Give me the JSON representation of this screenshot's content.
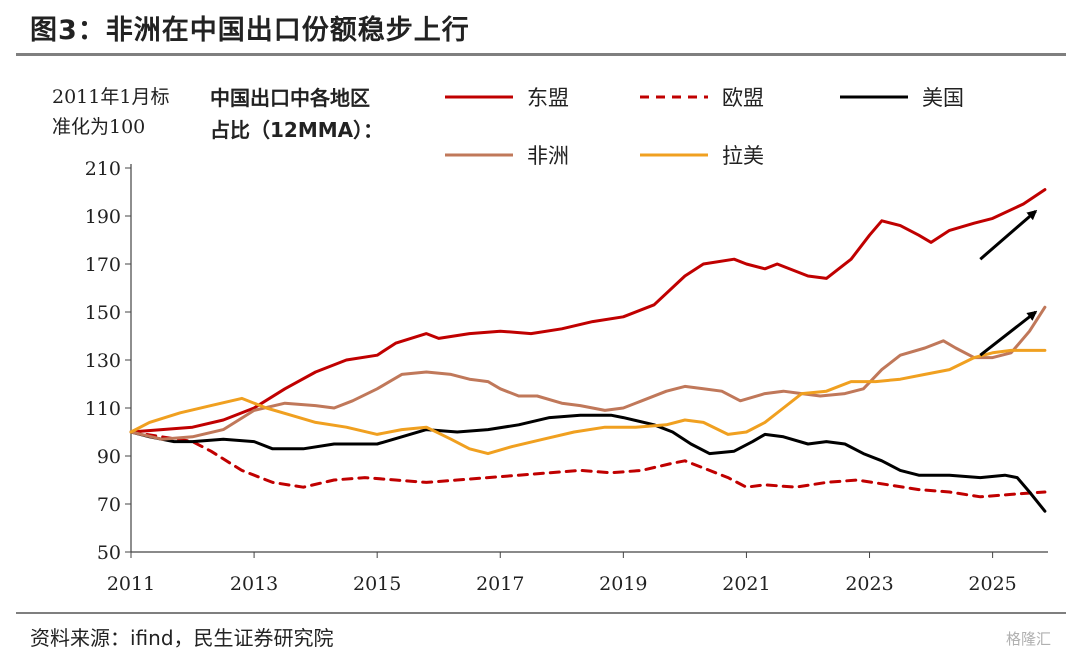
{
  "page": {
    "title": "图3：非洲在中国出口份额稳步上行",
    "source": "资料来源：ifind，民生证券研究院",
    "watermark": "格隆汇"
  },
  "chart_data": {
    "type": "line",
    "title": "图3：非洲在中国出口份额稳步上行",
    "subtitle_line1": "中国出口中各地区",
    "subtitle_line2": "占比（12MMA）：",
    "unit_line1": "2011年1月标",
    "unit_line2": "准化为100",
    "xlim": [
      2011,
      2025.9
    ],
    "ylim": [
      50,
      210
    ],
    "yticks": [
      50,
      70,
      90,
      110,
      130,
      150,
      170,
      190,
      210
    ],
    "xticks": [
      2011,
      2013,
      2015,
      2017,
      2019,
      2021,
      2023,
      2025
    ],
    "grid": false,
    "legend_position": "top",
    "series": [
      {
        "name": "东盟",
        "color": "#c00000",
        "dash": "solid",
        "points": [
          [
            2011.0,
            100
          ],
          [
            2011.5,
            101
          ],
          [
            2012.0,
            102
          ],
          [
            2012.5,
            105
          ],
          [
            2013.0,
            110
          ],
          [
            2013.5,
            118
          ],
          [
            2014.0,
            125
          ],
          [
            2014.5,
            130
          ],
          [
            2015.0,
            132
          ],
          [
            2015.3,
            137
          ],
          [
            2015.8,
            141
          ],
          [
            2016.0,
            139
          ],
          [
            2016.5,
            141
          ],
          [
            2017.0,
            142
          ],
          [
            2017.5,
            141
          ],
          [
            2018.0,
            143
          ],
          [
            2018.5,
            146
          ],
          [
            2019.0,
            148
          ],
          [
            2019.5,
            153
          ],
          [
            2020.0,
            165
          ],
          [
            2020.3,
            170
          ],
          [
            2020.8,
            172
          ],
          [
            2021.0,
            170
          ],
          [
            2021.3,
            168
          ],
          [
            2021.5,
            170
          ],
          [
            2022.0,
            165
          ],
          [
            2022.3,
            164
          ],
          [
            2022.7,
            172
          ],
          [
            2023.0,
            182
          ],
          [
            2023.2,
            188
          ],
          [
            2023.5,
            186
          ],
          [
            2023.8,
            182
          ],
          [
            2024.0,
            179
          ],
          [
            2024.3,
            184
          ],
          [
            2024.7,
            187
          ],
          [
            2025.0,
            189
          ],
          [
            2025.5,
            195
          ],
          [
            2025.85,
            201
          ]
        ]
      },
      {
        "name": "欧盟",
        "color": "#c00000",
        "dash": "dashed",
        "points": [
          [
            2011.0,
            100
          ],
          [
            2011.5,
            98
          ],
          [
            2012.0,
            96
          ],
          [
            2012.3,
            92
          ],
          [
            2012.8,
            84
          ],
          [
            2013.3,
            79
          ],
          [
            2013.8,
            77
          ],
          [
            2014.3,
            80
          ],
          [
            2014.8,
            81
          ],
          [
            2015.3,
            80
          ],
          [
            2015.8,
            79
          ],
          [
            2016.3,
            80
          ],
          [
            2016.8,
            81
          ],
          [
            2017.3,
            82
          ],
          [
            2017.8,
            83
          ],
          [
            2018.3,
            84
          ],
          [
            2018.8,
            83
          ],
          [
            2019.3,
            84
          ],
          [
            2019.8,
            87
          ],
          [
            2020.0,
            88
          ],
          [
            2020.3,
            85
          ],
          [
            2020.7,
            81
          ],
          [
            2021.0,
            77
          ],
          [
            2021.3,
            78
          ],
          [
            2021.8,
            77
          ],
          [
            2022.3,
            79
          ],
          [
            2022.8,
            80
          ],
          [
            2023.3,
            78
          ],
          [
            2023.8,
            76
          ],
          [
            2024.3,
            75
          ],
          [
            2024.8,
            73
          ],
          [
            2025.3,
            74
          ],
          [
            2025.85,
            75
          ]
        ]
      },
      {
        "name": "美国",
        "color": "#000000",
        "dash": "solid",
        "points": [
          [
            2011.0,
            100
          ],
          [
            2011.3,
            98
          ],
          [
            2011.7,
            96
          ],
          [
            2012.0,
            96
          ],
          [
            2012.5,
            97
          ],
          [
            2013.0,
            96
          ],
          [
            2013.3,
            93
          ],
          [
            2013.8,
            93
          ],
          [
            2014.3,
            95
          ],
          [
            2014.8,
            95
          ],
          [
            2015.0,
            95
          ],
          [
            2015.4,
            98
          ],
          [
            2015.8,
            101
          ],
          [
            2016.3,
            100
          ],
          [
            2016.8,
            101
          ],
          [
            2017.3,
            103
          ],
          [
            2017.8,
            106
          ],
          [
            2018.3,
            107
          ],
          [
            2018.8,
            107
          ],
          [
            2019.0,
            106
          ],
          [
            2019.5,
            103
          ],
          [
            2019.8,
            100
          ],
          [
            2020.1,
            95
          ],
          [
            2020.4,
            91
          ],
          [
            2020.8,
            92
          ],
          [
            2021.1,
            96
          ],
          [
            2021.3,
            99
          ],
          [
            2021.6,
            98
          ],
          [
            2022.0,
            95
          ],
          [
            2022.3,
            96
          ],
          [
            2022.6,
            95
          ],
          [
            2022.9,
            91
          ],
          [
            2023.2,
            88
          ],
          [
            2023.5,
            84
          ],
          [
            2023.8,
            82
          ],
          [
            2024.3,
            82
          ],
          [
            2024.8,
            81
          ],
          [
            2025.2,
            82
          ],
          [
            2025.4,
            81
          ],
          [
            2025.6,
            75
          ],
          [
            2025.85,
            67
          ]
        ]
      },
      {
        "name": "非洲",
        "color": "#c0785a",
        "dash": "solid",
        "points": [
          [
            2011.0,
            100
          ],
          [
            2011.5,
            97
          ],
          [
            2012.0,
            98
          ],
          [
            2012.5,
            101
          ],
          [
            2013.0,
            109
          ],
          [
            2013.5,
            112
          ],
          [
            2014.0,
            111
          ],
          [
            2014.3,
            110
          ],
          [
            2014.6,
            113
          ],
          [
            2015.0,
            118
          ],
          [
            2015.4,
            124
          ],
          [
            2015.8,
            125
          ],
          [
            2016.2,
            124
          ],
          [
            2016.5,
            122
          ],
          [
            2016.8,
            121
          ],
          [
            2017.0,
            118
          ],
          [
            2017.3,
            115
          ],
          [
            2017.6,
            115
          ],
          [
            2018.0,
            112
          ],
          [
            2018.3,
            111
          ],
          [
            2018.7,
            109
          ],
          [
            2019.0,
            110
          ],
          [
            2019.3,
            113
          ],
          [
            2019.7,
            117
          ],
          [
            2020.0,
            119
          ],
          [
            2020.3,
            118
          ],
          [
            2020.6,
            117
          ],
          [
            2020.9,
            113
          ],
          [
            2021.3,
            116
          ],
          [
            2021.6,
            117
          ],
          [
            2021.9,
            116
          ],
          [
            2022.2,
            115
          ],
          [
            2022.6,
            116
          ],
          [
            2022.9,
            118
          ],
          [
            2023.2,
            126
          ],
          [
            2023.5,
            132
          ],
          [
            2023.9,
            135
          ],
          [
            2024.2,
            138
          ],
          [
            2024.4,
            135
          ],
          [
            2024.7,
            131
          ],
          [
            2025.0,
            131
          ],
          [
            2025.3,
            133
          ],
          [
            2025.6,
            142
          ],
          [
            2025.85,
            152
          ]
        ]
      },
      {
        "name": "拉美",
        "color": "#f0a020",
        "dash": "solid",
        "points": [
          [
            2011.0,
            100
          ],
          [
            2011.3,
            104
          ],
          [
            2011.8,
            108
          ],
          [
            2012.3,
            111
          ],
          [
            2012.8,
            114
          ],
          [
            2013.2,
            110
          ],
          [
            2013.6,
            107
          ],
          [
            2014.0,
            104
          ],
          [
            2014.5,
            102
          ],
          [
            2015.0,
            99
          ],
          [
            2015.4,
            101
          ],
          [
            2015.8,
            102
          ],
          [
            2016.2,
            97
          ],
          [
            2016.5,
            93
          ],
          [
            2016.8,
            91
          ],
          [
            2017.2,
            94
          ],
          [
            2017.7,
            97
          ],
          [
            2018.2,
            100
          ],
          [
            2018.7,
            102
          ],
          [
            2019.2,
            102
          ],
          [
            2019.7,
            103
          ],
          [
            2020.0,
            105
          ],
          [
            2020.3,
            104
          ],
          [
            2020.7,
            99
          ],
          [
            2021.0,
            100
          ],
          [
            2021.3,
            104
          ],
          [
            2021.6,
            110
          ],
          [
            2021.9,
            116
          ],
          [
            2022.3,
            117
          ],
          [
            2022.7,
            121
          ],
          [
            2023.1,
            121
          ],
          [
            2023.5,
            122
          ],
          [
            2023.9,
            124
          ],
          [
            2024.3,
            126
          ],
          [
            2024.7,
            131
          ],
          [
            2025.0,
            133
          ],
          [
            2025.3,
            134
          ],
          [
            2025.85,
            134
          ]
        ]
      }
    ],
    "arrows": [
      {
        "from": [
          2024.8,
          172
        ],
        "to": [
          2025.7,
          192
        ]
      },
      {
        "from": [
          2024.8,
          132
        ],
        "to": [
          2025.7,
          150
        ]
      }
    ]
  }
}
